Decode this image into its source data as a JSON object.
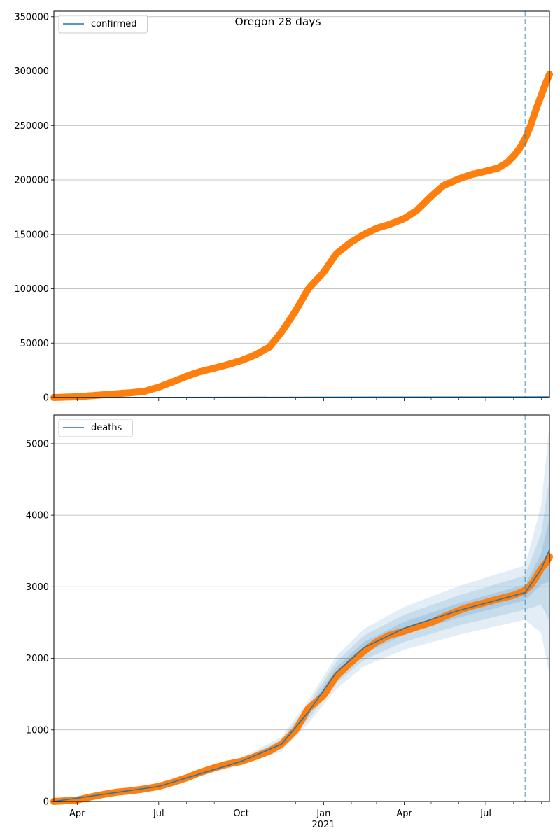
{
  "title": "Oregon 28 days",
  "colors": {
    "observed": "#ff7f0e",
    "model": "#1f77b4",
    "band": "#1f77b4",
    "grid": "#b0b0b0",
    "cutoff": "#1f77b4"
  },
  "x_axis": {
    "min": "2020-03-06",
    "max": "2021-09-10",
    "major_ticks": [
      {
        "date": "2020-04-01",
        "label": "Apr"
      },
      {
        "date": "2020-07-01",
        "label": "Jul"
      },
      {
        "date": "2020-10-01",
        "label": "Oct"
      },
      {
        "date": "2021-01-01",
        "label": "Jan"
      },
      {
        "date": "2021-04-01",
        "label": "Apr"
      },
      {
        "date": "2021-07-01",
        "label": "Jul"
      }
    ],
    "minor_ticks": [
      "2020-05-01",
      "2020-06-01",
      "2020-08-01",
      "2020-09-01",
      "2020-11-01",
      "2020-12-01",
      "2021-02-01",
      "2021-03-01",
      "2021-05-01",
      "2021-06-01",
      "2021-08-01",
      "2021-09-01"
    ],
    "year_label": "2021",
    "cutoff_date": "2021-08-14"
  },
  "chart_data": [
    {
      "type": "line",
      "legend": "confirmed",
      "legend_position": "upper-left",
      "grid": "y",
      "ylim": [
        0,
        355000
      ],
      "y_ticks": [
        0,
        50000,
        100000,
        150000,
        200000,
        250000,
        300000,
        350000
      ],
      "observed": [
        [
          "2020-03-06",
          0
        ],
        [
          "2020-04-01",
          700
        ],
        [
          "2020-05-01",
          2600
        ],
        [
          "2020-06-01",
          4500
        ],
        [
          "2020-06-15",
          5700
        ],
        [
          "2020-07-01",
          9500
        ],
        [
          "2020-07-15",
          14000
        ],
        [
          "2020-08-01",
          19500
        ],
        [
          "2020-08-15",
          23500
        ],
        [
          "2020-09-01",
          27000
        ],
        [
          "2020-09-15",
          30000
        ],
        [
          "2020-10-01",
          34000
        ],
        [
          "2020-10-15",
          38500
        ],
        [
          "2020-11-01",
          46000
        ],
        [
          "2020-11-15",
          60000
        ],
        [
          "2020-12-01",
          80000
        ],
        [
          "2020-12-15",
          100000
        ],
        [
          "2021-01-01",
          115000
        ],
        [
          "2021-01-15",
          132000
        ],
        [
          "2021-02-01",
          143000
        ],
        [
          "2021-02-15",
          150000
        ],
        [
          "2021-03-01",
          155500
        ],
        [
          "2021-03-15",
          159000
        ],
        [
          "2021-04-01",
          164500
        ],
        [
          "2021-04-15",
          172000
        ],
        [
          "2021-05-01",
          185000
        ],
        [
          "2021-05-15",
          195000
        ],
        [
          "2021-06-01",
          201000
        ],
        [
          "2021-06-15",
          205000
        ],
        [
          "2021-07-01",
          208000
        ],
        [
          "2021-07-15",
          211000
        ],
        [
          "2021-07-25",
          216000
        ],
        [
          "2021-08-01",
          222000
        ],
        [
          "2021-08-07",
          228000
        ],
        [
          "2021-08-14",
          238000
        ],
        [
          "2021-08-20",
          250000
        ],
        [
          "2021-08-26",
          265000
        ],
        [
          "2021-09-01",
          278000
        ],
        [
          "2021-09-06",
          289000
        ],
        [
          "2021-09-10",
          297000
        ]
      ],
      "model": [
        [
          "2020-03-06",
          0
        ],
        [
          "2021-09-10",
          600
        ]
      ]
    },
    {
      "type": "line",
      "legend": "deaths",
      "legend_position": "upper-left",
      "grid": "y",
      "ylim": [
        0,
        5400
      ],
      "y_ticks": [
        0,
        1000,
        2000,
        3000,
        4000,
        5000
      ],
      "observed": [
        [
          "2020-03-06",
          0
        ],
        [
          "2020-04-01",
          20
        ],
        [
          "2020-04-15",
          60
        ],
        [
          "2020-05-01",
          100
        ],
        [
          "2020-05-15",
          130
        ],
        [
          "2020-06-01",
          150
        ],
        [
          "2020-06-15",
          175
        ],
        [
          "2020-07-01",
          210
        ],
        [
          "2020-07-15",
          260
        ],
        [
          "2020-08-01",
          330
        ],
        [
          "2020-08-15",
          400
        ],
        [
          "2020-09-01",
          470
        ],
        [
          "2020-09-15",
          520
        ],
        [
          "2020-10-01",
          560
        ],
        [
          "2020-10-15",
          620
        ],
        [
          "2020-11-01",
          700
        ],
        [
          "2020-11-15",
          800
        ],
        [
          "2020-12-01",
          1000
        ],
        [
          "2020-12-15",
          1300
        ],
        [
          "2021-01-01",
          1480
        ],
        [
          "2021-01-15",
          1750
        ],
        [
          "2021-02-01",
          1950
        ],
        [
          "2021-02-15",
          2100
        ],
        [
          "2021-03-01",
          2230
        ],
        [
          "2021-03-15",
          2320
        ],
        [
          "2021-04-01",
          2380
        ],
        [
          "2021-04-15",
          2440
        ],
        [
          "2021-05-01",
          2500
        ],
        [
          "2021-05-15",
          2580
        ],
        [
          "2021-06-01",
          2670
        ],
        [
          "2021-06-15",
          2730
        ],
        [
          "2021-07-01",
          2780
        ],
        [
          "2021-07-15",
          2830
        ],
        [
          "2021-08-01",
          2880
        ],
        [
          "2021-08-14",
          2950
        ],
        [
          "2021-08-20",
          3020
        ],
        [
          "2021-08-26",
          3130
        ],
        [
          "2021-09-01",
          3260
        ],
        [
          "2021-09-06",
          3330
        ],
        [
          "2021-09-10",
          3420
        ]
      ],
      "model": [
        [
          "2020-03-06",
          0
        ],
        [
          "2020-07-01",
          210
        ],
        [
          "2020-10-01",
          560
        ],
        [
          "2020-11-15",
          800
        ],
        [
          "2020-12-15",
          1250
        ],
        [
          "2021-01-15",
          1800
        ],
        [
          "2021-02-15",
          2150
        ],
        [
          "2021-04-01",
          2420
        ],
        [
          "2021-06-01",
          2670
        ],
        [
          "2021-08-14",
          2920
        ],
        [
          "2021-09-01",
          3250
        ],
        [
          "2021-09-10",
          3520
        ]
      ],
      "band_outer_halfwidth": [
        [
          "2020-03-06",
          0
        ],
        [
          "2020-07-01",
          10
        ],
        [
          "2020-10-01",
          50
        ],
        [
          "2020-11-15",
          100
        ],
        [
          "2020-12-15",
          160
        ],
        [
          "2021-01-15",
          230
        ],
        [
          "2021-02-15",
          260
        ],
        [
          "2021-04-01",
          300
        ],
        [
          "2021-06-01",
          340
        ],
        [
          "2021-08-14",
          380
        ],
        [
          "2021-09-01",
          900
        ],
        [
          "2021-09-10",
          1750
        ]
      ],
      "band_mid_halfwidth": [
        [
          "2020-03-06",
          0
        ],
        [
          "2020-07-01",
          5
        ],
        [
          "2020-10-01",
          30
        ],
        [
          "2020-11-15",
          60
        ],
        [
          "2020-12-15",
          100
        ],
        [
          "2021-01-15",
          150
        ],
        [
          "2021-02-15",
          170
        ],
        [
          "2021-04-01",
          190
        ],
        [
          "2021-06-01",
          210
        ],
        [
          "2021-08-14",
          240
        ],
        [
          "2021-09-01",
          500
        ],
        [
          "2021-09-10",
          1000
        ]
      ],
      "band_inner_halfwidth": [
        [
          "2020-03-06",
          0
        ],
        [
          "2020-07-01",
          2
        ],
        [
          "2020-10-01",
          12
        ],
        [
          "2020-11-15",
          25
        ],
        [
          "2020-12-15",
          45
        ],
        [
          "2021-01-15",
          70
        ],
        [
          "2021-02-15",
          80
        ],
        [
          "2021-04-01",
          90
        ],
        [
          "2021-06-01",
          100
        ],
        [
          "2021-08-14",
          110
        ],
        [
          "2021-09-01",
          220
        ],
        [
          "2021-09-10",
          450
        ]
      ]
    }
  ]
}
